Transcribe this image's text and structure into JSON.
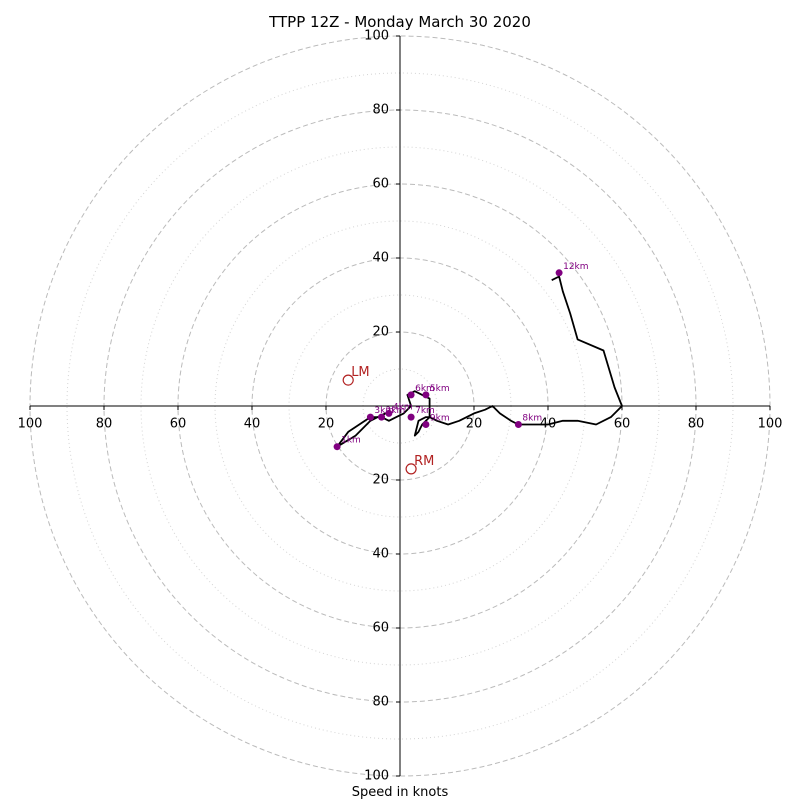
{
  "chart_data": {
    "type": "line",
    "title": "TTPP 12Z - Monday March 30 2020",
    "xlabel": "Speed in knots",
    "rings": {
      "major": [
        20,
        40,
        60,
        80,
        100
      ],
      "minor": [
        10,
        30,
        50,
        70,
        90
      ],
      "max": 100
    },
    "ticks": {
      "left": [
        "100",
        "80",
        "60",
        "40",
        "20"
      ],
      "right": [
        "20",
        "40",
        "60",
        "80",
        "100"
      ],
      "top": [
        "100",
        "80",
        "60",
        "40",
        "20"
      ],
      "bottom": [
        "20",
        "40",
        "60",
        "80",
        "100"
      ]
    },
    "series": [
      {
        "color": "#000000",
        "points": [
          [
            -1,
            -3
          ],
          [
            -3,
            -4
          ],
          [
            -5,
            -3
          ],
          [
            -8,
            -3
          ],
          [
            -11,
            -5
          ],
          [
            -14,
            -7
          ],
          [
            -17,
            -11
          ],
          [
            -12,
            -8
          ],
          [
            -8,
            -4
          ],
          [
            -6,
            -3
          ],
          [
            -4,
            -2
          ],
          [
            -5,
            -3
          ],
          [
            -3,
            -4
          ],
          [
            -1,
            -3
          ],
          [
            1,
            -2
          ],
          [
            3,
            0
          ],
          [
            2,
            3
          ],
          [
            4,
            4
          ],
          [
            6,
            3
          ],
          [
            8,
            2
          ],
          [
            8,
            -3
          ],
          [
            6,
            -5
          ],
          [
            5,
            -7
          ],
          [
            4,
            -8
          ],
          [
            5,
            -4
          ],
          [
            7,
            -3
          ],
          [
            8,
            -3
          ],
          [
            10,
            -4
          ],
          [
            13,
            -5
          ],
          [
            16,
            -4
          ],
          [
            20,
            -2
          ],
          [
            23,
            -1
          ],
          [
            25,
            0
          ],
          [
            27,
            -2
          ],
          [
            30,
            -4
          ],
          [
            32,
            -5
          ],
          [
            36,
            -5
          ],
          [
            40,
            -5
          ],
          [
            44,
            -4
          ],
          [
            48,
            -4
          ],
          [
            53,
            -5
          ],
          [
            57,
            -3
          ],
          [
            60,
            0
          ],
          [
            58,
            5
          ],
          [
            55,
            15
          ],
          [
            48,
            18
          ],
          [
            46,
            25
          ],
          [
            44,
            31
          ],
          [
            43,
            35
          ],
          [
            41,
            34
          ]
        ]
      }
    ],
    "height_markers": [
      {
        "label": "1km",
        "x": -17,
        "y": -11
      },
      {
        "label": "2km",
        "x": -5,
        "y": -3
      },
      {
        "label": "3km",
        "x": -8,
        "y": -3
      },
      {
        "label": "4km",
        "x": -3,
        "y": -2
      },
      {
        "label": "5km",
        "x": 7,
        "y": 3
      },
      {
        "label": "6km",
        "x": 3,
        "y": 3
      },
      {
        "label": "7km",
        "x": 3,
        "y": -3
      },
      {
        "label": "8km",
        "x": 32,
        "y": -5
      },
      {
        "label": "9km",
        "x": 7,
        "y": -5
      },
      {
        "label": "12km",
        "x": 43,
        "y": 36
      }
    ],
    "storm_motion": [
      {
        "label": "LM",
        "x": -14,
        "y": 7
      },
      {
        "label": "RM",
        "x": 3,
        "y": -17
      }
    ],
    "colors": {
      "markers": "#800080",
      "motion": "#b22222",
      "trace": "#000000",
      "grid": "#bbbbbb"
    }
  }
}
